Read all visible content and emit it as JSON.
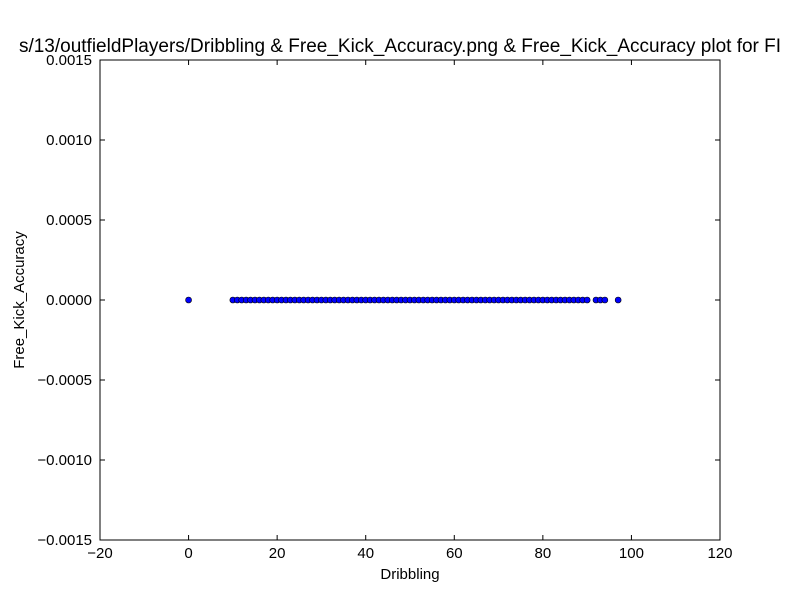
{
  "chart_data": {
    "type": "scatter",
    "title": "s/13/outfieldPlayers/Dribbling & Free_Kick_Accuracy.png & Free_Kick_Accuracy plot for FI",
    "xlabel": "Dribbling",
    "ylabel": "Free_Kick_Accuracy",
    "xlim": [
      -20,
      120
    ],
    "ylim": [
      -0.0015,
      0.0015
    ],
    "xticks": [
      -20,
      0,
      20,
      40,
      60,
      80,
      100,
      120
    ],
    "xtick_labels": [
      "−20",
      "0",
      "20",
      "40",
      "60",
      "80",
      "100",
      "120"
    ],
    "yticks": [
      0.0015,
      0.001,
      0.0005,
      0.0,
      -0.0005,
      -0.001,
      -0.0015
    ],
    "ytick_labels": [
      "0.0015",
      "0.0010",
      "0.0005",
      "0.0000",
      "−0.0005",
      "−0.0010",
      "−0.0015"
    ],
    "grid": false,
    "marker_color": "#0000ff",
    "marker_edge_color": "#000000",
    "x": [
      0,
      10,
      11,
      12,
      13,
      14,
      15,
      16,
      17,
      18,
      19,
      20,
      21,
      22,
      23,
      24,
      25,
      26,
      27,
      28,
      29,
      30,
      31,
      32,
      33,
      34,
      35,
      36,
      37,
      38,
      39,
      40,
      41,
      42,
      43,
      44,
      45,
      46,
      47,
      48,
      49,
      50,
      51,
      52,
      53,
      54,
      55,
      56,
      57,
      58,
      59,
      60,
      61,
      62,
      63,
      64,
      65,
      66,
      67,
      68,
      69,
      70,
      71,
      72,
      73,
      74,
      75,
      76,
      77,
      78,
      79,
      80,
      81,
      82,
      83,
      84,
      85,
      86,
      87,
      88,
      89,
      90,
      92,
      93,
      94,
      97
    ],
    "y": [
      0,
      0,
      0,
      0,
      0,
      0,
      0,
      0,
      0,
      0,
      0,
      0,
      0,
      0,
      0,
      0,
      0,
      0,
      0,
      0,
      0,
      0,
      0,
      0,
      0,
      0,
      0,
      0,
      0,
      0,
      0,
      0,
      0,
      0,
      0,
      0,
      0,
      0,
      0,
      0,
      0,
      0,
      0,
      0,
      0,
      0,
      0,
      0,
      0,
      0,
      0,
      0,
      0,
      0,
      0,
      0,
      0,
      0,
      0,
      0,
      0,
      0,
      0,
      0,
      0,
      0,
      0,
      0,
      0,
      0,
      0,
      0,
      0,
      0,
      0,
      0,
      0,
      0,
      0,
      0,
      0,
      0,
      0,
      0,
      0,
      0
    ]
  }
}
